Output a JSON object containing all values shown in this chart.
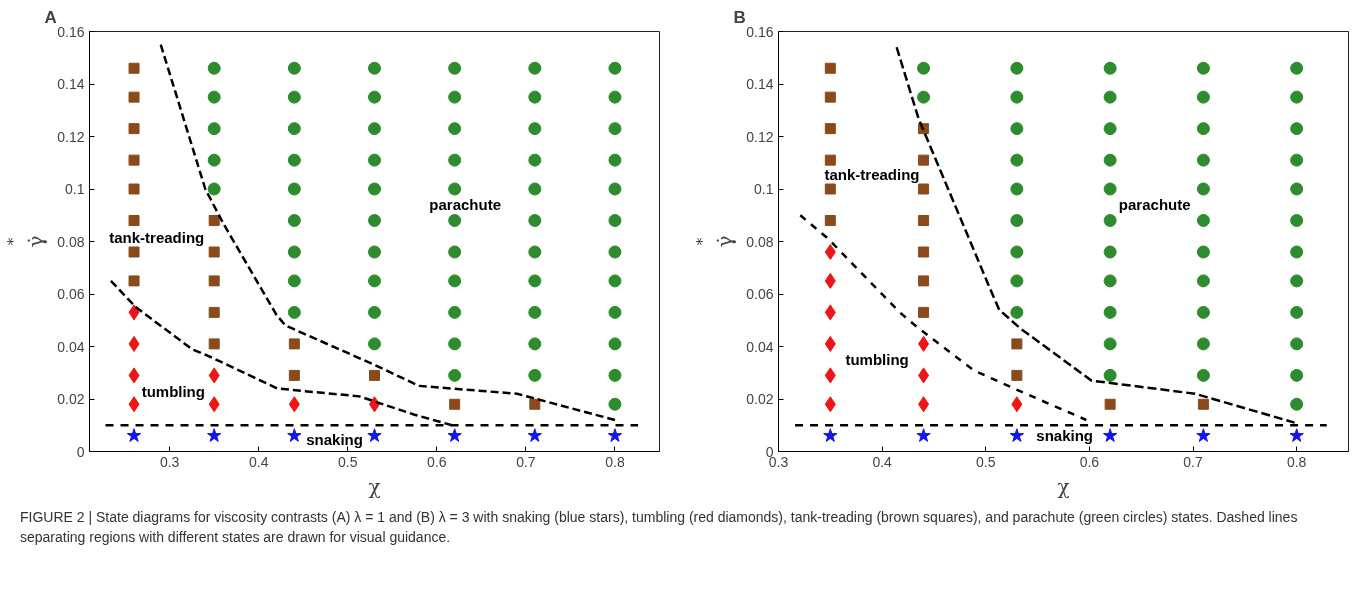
{
  "chart_data": [
    {
      "type": "scatter",
      "title": "A",
      "xlabel": "χ",
      "ylabel": "γ̇$^{*}$",
      "xlim": [
        0.21,
        0.85
      ],
      "ylim": [
        0,
        0.16
      ],
      "xticks": [
        0.3,
        0.4,
        0.5,
        0.6,
        0.7,
        0.8
      ],
      "yticks": [
        0,
        0.02,
        0.04,
        0.06,
        0.08,
        0.1,
        0.12,
        0.14,
        0.16
      ],
      "grid": false,
      "series": [
        {
          "marker": "star",
          "color": "#1414f0",
          "x": [
            0.26,
            0.35,
            0.44,
            0.53,
            0.62,
            0.71,
            0.8
          ],
          "values": [
            0.006,
            0.006,
            0.006,
            0.006,
            0.006,
            0.006,
            0.006
          ]
        },
        {
          "marker": "diamond",
          "color": "#f01414",
          "x": [
            0.26,
            0.26,
            0.26,
            0.26,
            0.35,
            0.35,
            0.44,
            0.53
          ],
          "values": [
            0.018,
            0.029,
            0.041,
            0.053,
            0.018,
            0.029,
            0.018,
            0.018
          ]
        },
        {
          "marker": "square",
          "color": "#8b4a1c",
          "x": [
            0.26,
            0.26,
            0.26,
            0.26,
            0.26,
            0.26,
            0.26,
            0.26,
            0.35,
            0.35,
            0.35,
            0.35,
            0.35,
            0.44,
            0.44,
            0.53,
            0.62,
            0.71
          ],
          "values": [
            0.065,
            0.076,
            0.088,
            0.1,
            0.111,
            0.123,
            0.135,
            0.146,
            0.041,
            0.053,
            0.065,
            0.076,
            0.088,
            0.029,
            0.041,
            0.029,
            0.018,
            0.018
          ]
        },
        {
          "marker": "circle",
          "color": "#2e8b2e",
          "x": [
            0.35,
            0.35,
            0.35,
            0.35,
            0.35,
            0.44,
            0.44,
            0.44,
            0.44,
            0.44,
            0.44,
            0.44,
            0.44,
            0.44,
            0.53,
            0.53,
            0.53,
            0.53,
            0.53,
            0.53,
            0.53,
            0.53,
            0.53,
            0.53,
            0.62,
            0.62,
            0.62,
            0.62,
            0.62,
            0.62,
            0.62,
            0.62,
            0.62,
            0.62,
            0.62,
            0.71,
            0.71,
            0.71,
            0.71,
            0.71,
            0.71,
            0.71,
            0.71,
            0.71,
            0.71,
            0.71,
            0.8,
            0.8,
            0.8,
            0.8,
            0.8,
            0.8,
            0.8,
            0.8,
            0.8,
            0.8,
            0.8,
            0.8
          ],
          "values": [
            0.1,
            0.111,
            0.123,
            0.135,
            0.146,
            0.053,
            0.065,
            0.076,
            0.088,
            0.1,
            0.111,
            0.123,
            0.135,
            0.146,
            0.041,
            0.053,
            0.065,
            0.076,
            0.088,
            0.1,
            0.111,
            0.123,
            0.135,
            0.146,
            0.029,
            0.041,
            0.053,
            0.065,
            0.076,
            0.088,
            0.1,
            0.111,
            0.123,
            0.135,
            0.146,
            0.029,
            0.041,
            0.053,
            0.065,
            0.076,
            0.088,
            0.1,
            0.111,
            0.123,
            0.135,
            0.146,
            0.018,
            0.029,
            0.041,
            0.053,
            0.065,
            0.076,
            0.088,
            0.1,
            0.111,
            0.123,
            0.135,
            0.146
          ]
        },
        {
          "type": "line",
          "line_style": "dashed",
          "color": "#000000",
          "x": [
            0.29,
            0.34,
            0.36,
            0.42,
            0.43,
            0.53,
            0.58,
            0.69,
            0.8
          ],
          "values": [
            0.155,
            0.1,
            0.087,
            0.052,
            0.048,
            0.033,
            0.025,
            0.022,
            0.012
          ]
        },
        {
          "type": "line",
          "line_style": "dashed",
          "color": "#000000",
          "x": [
            0.234,
            0.262,
            0.325,
            0.346,
            0.421,
            0.513,
            0.575,
            0.617
          ],
          "values": [
            0.065,
            0.055,
            0.039,
            0.036,
            0.024,
            0.021,
            0.014,
            0.01
          ]
        },
        {
          "type": "line",
          "line_style": "dashed",
          "color": "#000000",
          "x": [
            0.228,
            0.826
          ],
          "values": [
            0.01,
            0.01
          ]
        }
      ],
      "annotations": [
        "tank-treading",
        "parachute",
        "tumbling",
        "snaking"
      ]
    },
    {
      "type": "scatter",
      "title": "B",
      "xlabel": "χ",
      "ylabel": "γ̇$^{*}$",
      "xlim": [
        0.3,
        0.85
      ],
      "ylim": [
        0,
        0.16
      ],
      "xticks": [
        0.3,
        0.4,
        0.5,
        0.6,
        0.7,
        0.8
      ],
      "yticks": [
        0,
        0.02,
        0.04,
        0.06,
        0.08,
        0.1,
        0.12,
        0.14,
        0.16
      ],
      "grid": false,
      "series": [
        {
          "marker": "star",
          "color": "#1414f0",
          "x": [
            0.35,
            0.44,
            0.53,
            0.62,
            0.71,
            0.8
          ],
          "values": [
            0.006,
            0.006,
            0.006,
            0.006,
            0.006,
            0.006
          ]
        },
        {
          "marker": "diamond",
          "color": "#f01414",
          "x": [
            0.35,
            0.35,
            0.35,
            0.35,
            0.35,
            0.35,
            0.44,
            0.44,
            0.44,
            0.53
          ],
          "values": [
            0.018,
            0.029,
            0.041,
            0.053,
            0.065,
            0.076,
            0.018,
            0.029,
            0.041,
            0.018
          ]
        },
        {
          "marker": "square",
          "color": "#8b4a1c",
          "x": [
            0.35,
            0.35,
            0.35,
            0.35,
            0.35,
            0.35,
            0.44,
            0.44,
            0.44,
            0.44,
            0.44,
            0.44,
            0.44,
            0.53,
            0.53,
            0.62,
            0.71
          ],
          "values": [
            0.088,
            0.1,
            0.111,
            0.123,
            0.135,
            0.146,
            0.053,
            0.065,
            0.076,
            0.088,
            0.1,
            0.111,
            0.123,
            0.029,
            0.041,
            0.018,
            0.018
          ]
        },
        {
          "marker": "circle",
          "color": "#2e8b2e",
          "x": [
            0.44,
            0.44,
            0.53,
            0.53,
            0.53,
            0.53,
            0.53,
            0.53,
            0.53,
            0.53,
            0.53,
            0.62,
            0.62,
            0.62,
            0.62,
            0.62,
            0.62,
            0.62,
            0.62,
            0.62,
            0.62,
            0.62,
            0.71,
            0.71,
            0.71,
            0.71,
            0.71,
            0.71,
            0.71,
            0.71,
            0.71,
            0.71,
            0.71,
            0.8,
            0.8,
            0.8,
            0.8,
            0.8,
            0.8,
            0.8,
            0.8,
            0.8,
            0.8,
            0.8,
            0.8
          ],
          "values": [
            0.135,
            0.146,
            0.053,
            0.065,
            0.076,
            0.088,
            0.1,
            0.111,
            0.123,
            0.135,
            0.146,
            0.029,
            0.041,
            0.053,
            0.065,
            0.076,
            0.088,
            0.1,
            0.111,
            0.123,
            0.135,
            0.146,
            0.029,
            0.041,
            0.053,
            0.065,
            0.076,
            0.088,
            0.1,
            0.111,
            0.123,
            0.135,
            0.146,
            0.018,
            0.029,
            0.041,
            0.053,
            0.065,
            0.076,
            0.088,
            0.1,
            0.111,
            0.123,
            0.135,
            0.146
          ]
        },
        {
          "type": "line",
          "line_style": "dashed",
          "color": "#000000",
          "x": [
            0.414,
            0.435,
            0.502,
            0.513,
            0.533,
            0.602,
            0.702,
            0.798
          ],
          "values": [
            0.154,
            0.127,
            0.064,
            0.054,
            0.047,
            0.027,
            0.022,
            0.011
          ]
        },
        {
          "type": "line",
          "line_style": "dashed",
          "color": "#000000",
          "x": [
            0.321,
            0.348,
            0.417,
            0.435,
            0.488,
            0.533,
            0.597
          ],
          "values": [
            0.09,
            0.081,
            0.053,
            0.047,
            0.031,
            0.023,
            0.012
          ]
        },
        {
          "type": "line",
          "line_style": "dashed",
          "color": "#000000",
          "x": [
            0.316,
            0.829
          ],
          "values": [
            0.01,
            0.01
          ]
        }
      ],
      "annotations": [
        "tank-treading",
        "parachute",
        "tumbling",
        "snaking",
        "FIGURE 2 | State diagrams for viscosity contrasts (A) λ = 1 and (B) λ = 3 with snaking (blue stars), tumbling (red diamonds), tank-treading (brown squares), and parachute (green circles) states. Dashed lines separating regions with different states are drawn for visual guidance."
      ]
    }
  ]
}
